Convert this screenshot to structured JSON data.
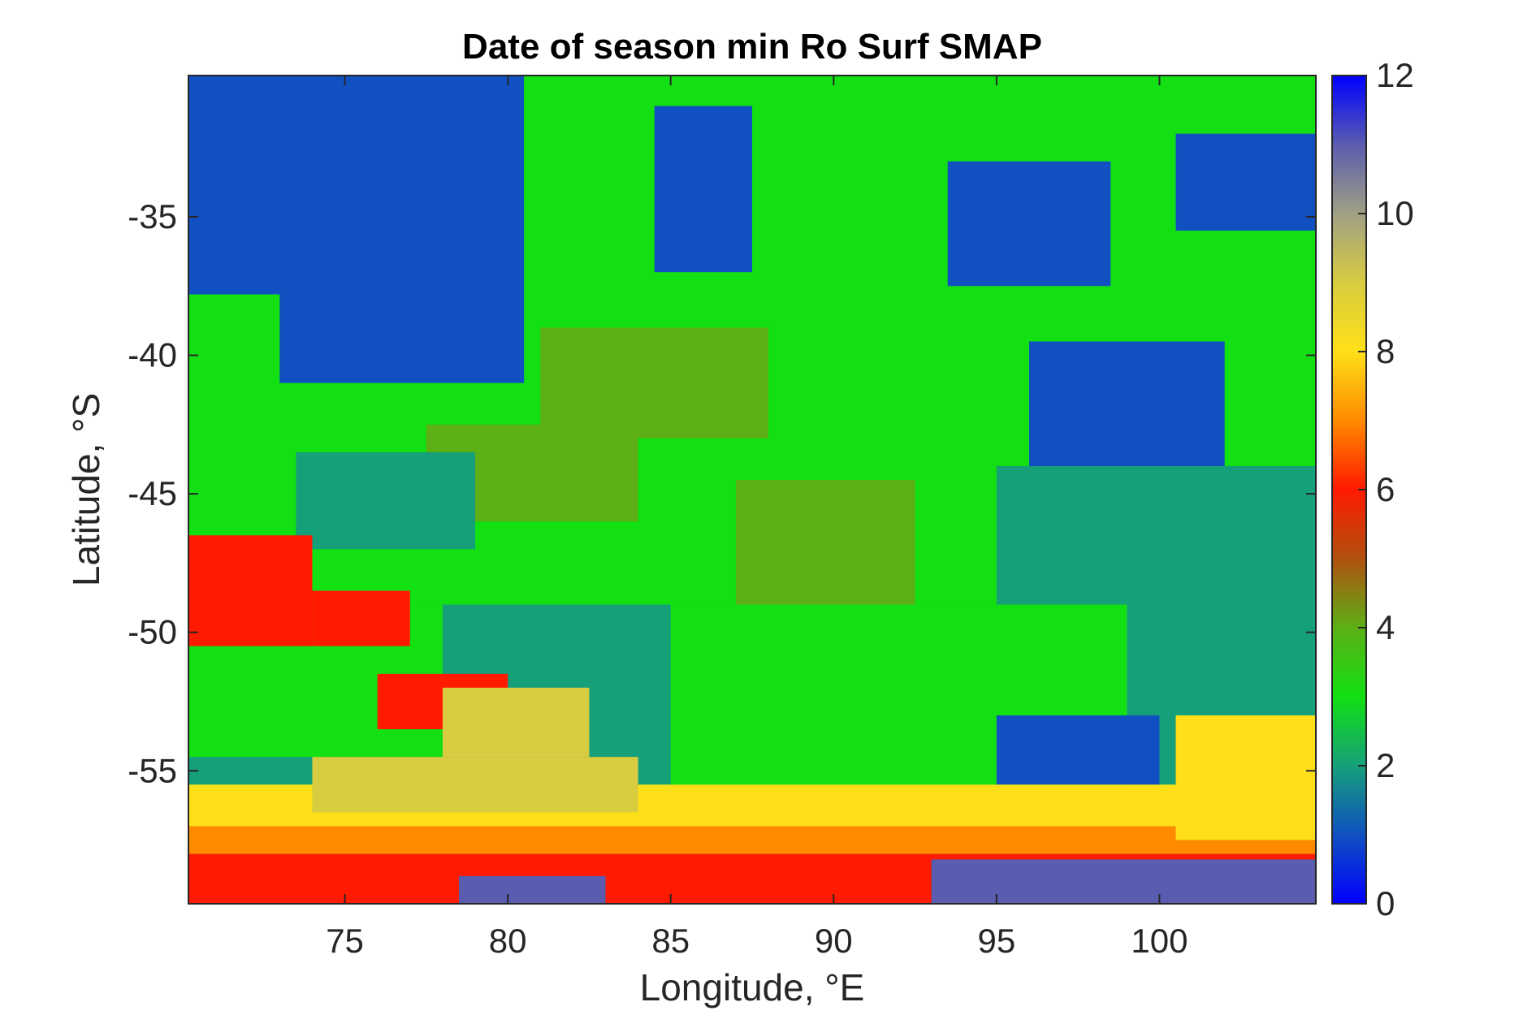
{
  "chart_data": {
    "type": "heatmap",
    "title": "Date of season min Ro Surf SMAP",
    "xlabel": "Longitude, °E",
    "ylabel": "Latitude, °S",
    "xlim": [
      70.2,
      104.8
    ],
    "ylim": [
      -59.8,
      -29.9
    ],
    "x_ticks": [
      75,
      80,
      85,
      90,
      95,
      100
    ],
    "y_ticks": [
      -35,
      -40,
      -45,
      -50,
      -55
    ],
    "colorbar": {
      "range": [
        0,
        12
      ],
      "ticks": [
        0,
        2,
        4,
        6,
        8,
        10,
        12
      ],
      "colors": [
        "#0000ff",
        "#1050c0",
        "#16a07a",
        "#12e012",
        "#5cb016",
        "#b0500e",
        "#ff1a00",
        "#ff8a00",
        "#ffe018",
        "#d8cc40",
        "#a0a084",
        "#5a5cb0",
        "#0000ff"
      ]
    },
    "legend": "colorbar-right",
    "grid": false,
    "regions": [
      {
        "lon": [
          70.2,
          104.8
        ],
        "lat": [
          -49,
          -29.9
        ],
        "value": 3
      },
      {
        "lon": [
          70.2,
          80.5
        ],
        "lat": [
          -37.8,
          -29.9
        ],
        "value": 1
      },
      {
        "lon": [
          80.5,
          86.5
        ],
        "lat": [
          -34.5,
          -29.9
        ],
        "value": 3
      },
      {
        "lon": [
          84.5,
          87.5
        ],
        "lat": [
          -37.0,
          -31.0
        ],
        "value": 1
      },
      {
        "lon": [
          93.5,
          98.5
        ],
        "lat": [
          -37.5,
          -33.0
        ],
        "value": 1
      },
      {
        "lon": [
          100.5,
          104.8
        ],
        "lat": [
          -35.5,
          -32.0
        ],
        "value": 1
      },
      {
        "lon": [
          73.0,
          80.5
        ],
        "lat": [
          -41.0,
          -37.8
        ],
        "value": 1
      },
      {
        "lon": [
          96.0,
          102.0
        ],
        "lat": [
          -44.0,
          -39.5
        ],
        "value": 1
      },
      {
        "lon": [
          81.0,
          88.0
        ],
        "lat": [
          -43.0,
          -39.0
        ],
        "value": 4
      },
      {
        "lon": [
          77.5,
          84.0
        ],
        "lat": [
          -46.0,
          -42.5
        ],
        "value": 4
      },
      {
        "lon": [
          87.0,
          92.5
        ],
        "lat": [
          -49.0,
          -44.5
        ],
        "value": 4
      },
      {
        "lon": [
          73.5,
          79.0
        ],
        "lat": [
          -47.0,
          -43.5
        ],
        "value": 2
      },
      {
        "lon": [
          95.0,
          104.8
        ],
        "lat": [
          -49.0,
          -44.0
        ],
        "value": 2
      },
      {
        "lon": [
          70.2,
          104.8
        ],
        "lat": [
          -55.5,
          -49.0
        ],
        "value": 2
      },
      {
        "lon": [
          70.2,
          78.0
        ],
        "lat": [
          -54.5,
          -49.0
        ],
        "value": 3
      },
      {
        "lon": [
          85.0,
          99.0
        ],
        "lat": [
          -56.0,
          -49.0
        ],
        "value": 3
      },
      {
        "lon": [
          70.2,
          74.0
        ],
        "lat": [
          -50.5,
          -46.5
        ],
        "value": 6
      },
      {
        "lon": [
          74.0,
          77.0
        ],
        "lat": [
          -50.5,
          -48.5
        ],
        "value": 6
      },
      {
        "lon": [
          76.0,
          80.0
        ],
        "lat": [
          -53.5,
          -51.5
        ],
        "value": 6
      },
      {
        "lon": [
          78.0,
          82.5
        ],
        "lat": [
          -54.5,
          -52.0
        ],
        "value": 9
      },
      {
        "lon": [
          95.0,
          100.0
        ],
        "lat": [
          -55.5,
          -53.0
        ],
        "value": 1
      },
      {
        "lon": [
          70.2,
          104.8
        ],
        "lat": [
          -57.0,
          -55.5
        ],
        "value": 8
      },
      {
        "lon": [
          74.0,
          84.0
        ],
        "lat": [
          -56.5,
          -54.5
        ],
        "value": 9
      },
      {
        "lon": [
          70.2,
          104.8
        ],
        "lat": [
          -58.0,
          -57.0
        ],
        "value": 7
      },
      {
        "lon": [
          70.2,
          104.8
        ],
        "lat": [
          -59.8,
          -58.0
        ],
        "value": 6
      },
      {
        "lon": [
          93.0,
          104.8
        ],
        "lat": [
          -59.8,
          -58.2
        ],
        "value": 11
      },
      {
        "lon": [
          78.5,
          83.0
        ],
        "lat": [
          -59.8,
          -58.8
        ],
        "value": 11
      },
      {
        "lon": [
          100.5,
          104.8
        ],
        "lat": [
          -57.5,
          -53.0
        ],
        "value": 8
      }
    ]
  }
}
